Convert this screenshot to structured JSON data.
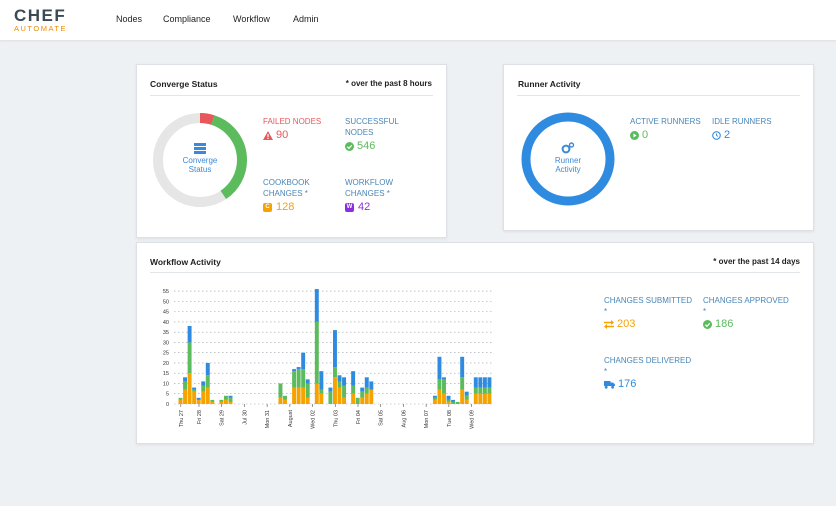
{
  "brand": {
    "name": "CHEF",
    "sub": "AUTOMATE"
  },
  "nav": {
    "items": [
      "Nodes",
      "Compliance",
      "Workflow",
      "Admin"
    ]
  },
  "converge": {
    "title": "Converge Status",
    "note": "* over the past 8 hours",
    "donut_label_line1": "Converge",
    "donut_label_line2": "Status",
    "failed_label": "FAILED NODES",
    "failed_value": "90",
    "successful_label_line1": "SUCCESSFUL",
    "successful_label_line2": "NODES",
    "successful_value": "546",
    "cookbook_label_line1": "COOKBOOK",
    "cookbook_label_line2": "CHANGES *",
    "cookbook_badge": "C",
    "cookbook_value": "128",
    "workflow_label_line1": "WORKFLOW",
    "workflow_label_line2": "CHANGES *",
    "workflow_badge": "W",
    "workflow_value": "42",
    "colors": {
      "failed": "#e8585a",
      "success": "#5cbb5c",
      "cookbook": "#f5a300",
      "workflow": "#8d2fe0",
      "track": "#e6e6e6"
    }
  },
  "runner": {
    "title": "Runner Activity",
    "donut_label_line1": "Runner",
    "donut_label_line2": "Activity",
    "active_label": "ACTIVE RUNNERS",
    "active_value": "0",
    "idle_label": "IDLE RUNNERS",
    "idle_value": "2",
    "colors": {
      "ring": "#2f8be0",
      "active": "#5cbb5c",
      "idle": "#2f8be0"
    }
  },
  "workflow_activity": {
    "title": "Workflow Activity",
    "note": "* over the past 14 days",
    "submitted_label": "CHANGES SUBMITTED",
    "submitted_star": "*",
    "submitted_value": "203",
    "approved_label": "CHANGES APPROVED",
    "approved_star": "*",
    "approved_value": "186",
    "delivered_label": "CHANGES DELIVERED",
    "delivered_star": "*",
    "delivered_value": "176",
    "colors": {
      "submitted": "#f5a300",
      "approved": "#5cbb5c",
      "delivered": "#2f8be0"
    }
  },
  "chart_data": {
    "type": "bar",
    "stacked": true,
    "ylim": [
      0,
      57
    ],
    "yticks": [
      0,
      5,
      10,
      15,
      20,
      25,
      30,
      35,
      40,
      45,
      50,
      55
    ],
    "grid": true,
    "xticks": [
      {
        "label": "Thu 27",
        "pos": 1
      },
      {
        "label": "Fri 28",
        "pos": 5
      },
      {
        "label": "Sat 29",
        "pos": 10
      },
      {
        "label": "Jul 30",
        "pos": 15
      },
      {
        "label": "Mon 31",
        "pos": 20
      },
      {
        "label": "August",
        "pos": 25
      },
      {
        "label": "Wed 02",
        "pos": 30
      },
      {
        "label": "Thu 03",
        "pos": 35
      },
      {
        "label": "Fri 04",
        "pos": 40
      },
      {
        "label": "Sat 05",
        "pos": 45
      },
      {
        "label": "Aug 06",
        "pos": 50
      },
      {
        "label": "Mon 07",
        "pos": 55
      },
      {
        "label": "Tue 08",
        "pos": 60
      },
      {
        "label": "Wed 09",
        "pos": 65
      }
    ],
    "series": [
      {
        "name": "Submitted",
        "values": [
          0,
          2,
          7,
          15,
          6,
          2,
          6,
          8,
          1,
          0,
          1,
          2,
          1,
          0,
          0,
          0,
          0,
          0,
          0,
          0,
          0,
          0,
          0,
          3,
          2,
          0,
          8,
          8,
          8,
          3,
          0,
          10,
          5,
          0,
          0,
          13,
          8,
          3,
          0,
          5,
          0,
          3,
          5,
          7,
          0,
          0,
          0,
          0,
          0,
          0,
          0,
          0,
          0,
          0,
          0,
          0,
          0,
          2,
          7,
          5,
          1,
          0,
          0,
          7,
          2,
          0,
          5,
          5,
          5,
          5
        ]
      },
      {
        "name": "Approved",
        "values": [
          0,
          1,
          4,
          15,
          1,
          0,
          3,
          6,
          1,
          0,
          1,
          2,
          2,
          0,
          0,
          0,
          0,
          0,
          0,
          0,
          0,
          0,
          0,
          7,
          2,
          0,
          8,
          9,
          9,
          7,
          0,
          30,
          2,
          0,
          6,
          5,
          3,
          6,
          0,
          4,
          3,
          3,
          3,
          0,
          0,
          0,
          0,
          0,
          0,
          0,
          0,
          0,
          0,
          0,
          0,
          0,
          0,
          1,
          5,
          7,
          1,
          1,
          1,
          6,
          2,
          0,
          3,
          3,
          3,
          3
        ]
      },
      {
        "name": "Delivered",
        "values": [
          0,
          0,
          2,
          8,
          1,
          1,
          2,
          6,
          0,
          0,
          0,
          0,
          1,
          0,
          0,
          0,
          0,
          0,
          0,
          0,
          0,
          0,
          0,
          0,
          0,
          0,
          1,
          1,
          8,
          2,
          0,
          16,
          9,
          0,
          2,
          18,
          3,
          4,
          0,
          7,
          0,
          2,
          5,
          4,
          0,
          0,
          0,
          0,
          0,
          0,
          0,
          0,
          0,
          0,
          0,
          0,
          0,
          1,
          11,
          1,
          2,
          1,
          0,
          10,
          2,
          0,
          5,
          5,
          5,
          5
        ]
      }
    ]
  }
}
